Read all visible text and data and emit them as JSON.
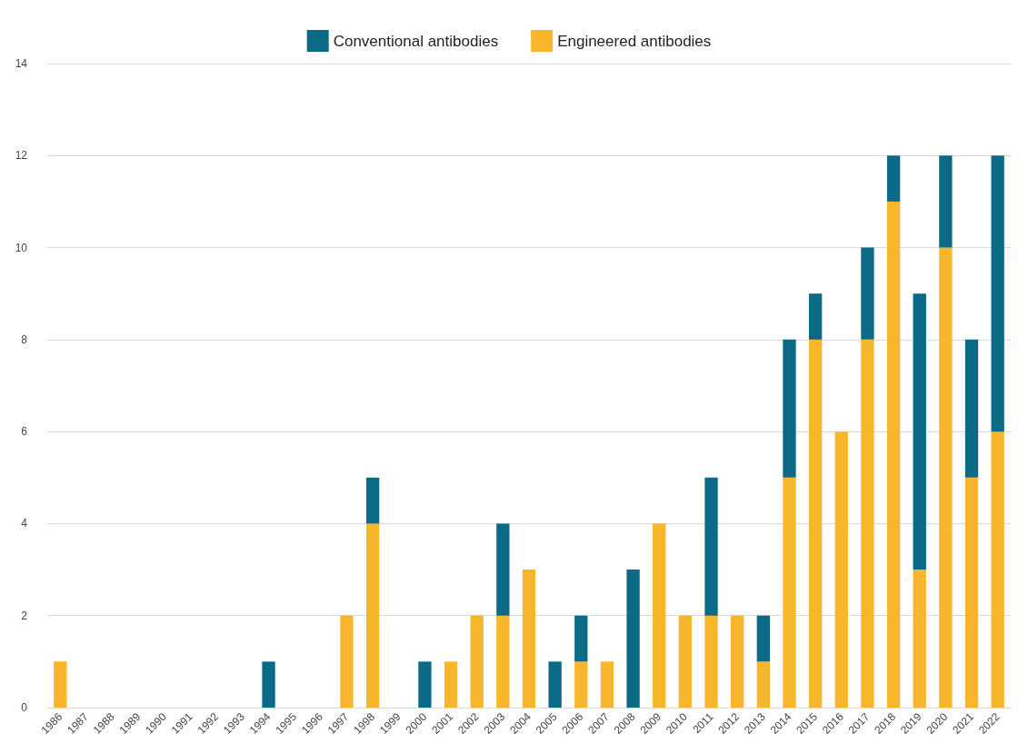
{
  "chart_data": {
    "type": "bar",
    "stacked": true,
    "categories": [
      "1986",
      "1987",
      "1988",
      "1989",
      "1990",
      "1991",
      "1992",
      "1993",
      "1994",
      "1995",
      "1996",
      "1997",
      "1998",
      "1999",
      "2000",
      "2001",
      "2002",
      "2003",
      "2004",
      "2005",
      "2006",
      "2007",
      "2008",
      "2009",
      "2010",
      "2011",
      "2012",
      "2013",
      "2014",
      "2015",
      "2016",
      "2017",
      "2018",
      "2019",
      "2020",
      "2021",
      "2022"
    ],
    "series": [
      {
        "name": "Engineered antibodies",
        "color": "#f8b62d",
        "values": [
          1,
          0,
          0,
          0,
          0,
          0,
          0,
          0,
          0,
          0,
          0,
          2,
          4,
          0,
          0,
          1,
          2,
          2,
          3,
          0,
          1,
          1,
          0,
          4,
          2,
          2,
          2,
          1,
          5,
          8,
          6,
          8,
          11,
          3,
          10,
          5,
          6
        ]
      },
      {
        "name": "Conventional antibodies",
        "color": "#0b6a86",
        "values": [
          0,
          0,
          0,
          0,
          0,
          0,
          0,
          0,
          1,
          0,
          0,
          0,
          1,
          0,
          1,
          0,
          0,
          2,
          0,
          1,
          1,
          0,
          3,
          0,
          0,
          3,
          0,
          1,
          3,
          1,
          0,
          2,
          1,
          6,
          2,
          3,
          6
        ]
      }
    ],
    "ylim": [
      0,
      14
    ],
    "yticks": [
      0,
      2,
      4,
      6,
      8,
      10,
      12,
      14
    ],
    "grid": "y",
    "legend": "top"
  }
}
